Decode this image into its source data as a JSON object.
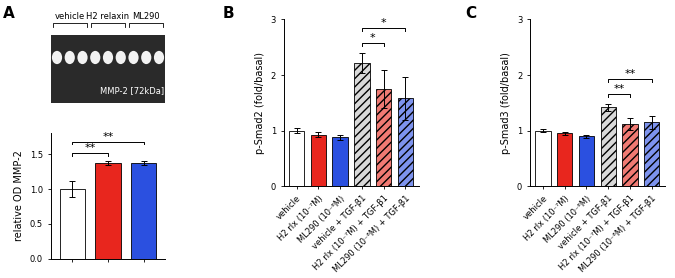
{
  "chart_data": [
    {
      "type": "bar",
      "panel": "A",
      "ylabel": "relative OD MMP-2",
      "blot": {
        "label": "MMP-2 [72kDa]"
      },
      "categories": [
        "vehicle",
        "H2 relaxin",
        "ML290"
      ],
      "values": [
        1.0,
        1.38,
        1.38
      ],
      "errors": [
        0.12,
        0.03,
        0.03
      ],
      "colors": [
        "#ffffff",
        "#e8261e",
        "#2b50e0"
      ],
      "ylim": [
        0,
        1.8
      ],
      "yticks": [
        {
          "value": 0,
          "label": "0.0"
        },
        {
          "value": 0.5,
          "label": "0.5"
        },
        {
          "value": 1.0,
          "label": "1.0"
        },
        {
          "value": 1.5,
          "label": "1.5"
        }
      ],
      "tick_labels": "y",
      "significance": [
        {
          "between": [
            "vehicle",
            "H2 relaxin"
          ],
          "label": "**"
        },
        {
          "between": [
            "vehicle",
            "ML290"
          ],
          "label": "**"
        }
      ]
    },
    {
      "type": "bar",
      "panel": "B",
      "ylabel": "p-Smad2 (fold/basal)",
      "categories": [
        "vehicle",
        "H2 rlx (10⁻⁷M)",
        "ML290 (10⁻⁶M)",
        "vehicle + TGF-β1",
        "H2 rlx (10⁻⁷M) + TGF-β1",
        "ML290 (10⁻⁶M) + TGF-β1"
      ],
      "values": [
        1.0,
        0.93,
        0.88,
        2.22,
        1.75,
        1.58
      ],
      "errors": [
        0.05,
        0.04,
        0.04,
        0.18,
        0.35,
        0.38
      ],
      "colors": [
        "#ffffff",
        "#e8261e",
        "#2b50e0",
        "#d9d9d9",
        "#f07a73",
        "#7d93ee"
      ],
      "ylim": [
        0,
        3
      ],
      "yticks": [
        0,
        1,
        2,
        3
      ],
      "significance": [
        {
          "between": [
            "vehicle + TGF-β1",
            "H2 rlx (10⁻⁷M) + TGF-β1"
          ],
          "label": "*"
        },
        {
          "between": [
            "vehicle + TGF-β1",
            "ML290 (10⁻⁶M) + TGF-β1"
          ],
          "label": "*"
        }
      ]
    },
    {
      "type": "bar",
      "panel": "C",
      "ylabel": "p-Smad3 (fold/basal)",
      "categories": [
        "vehicle",
        "H2 rlx (10⁻⁷M)",
        "ML290 (10⁻⁶M)",
        "vehicle + TGF-β1",
        "H2 rlx (10⁻⁷M) + TGF-β1",
        "ML290 (10⁻⁶M) + TGF-β1"
      ],
      "values": [
        1.0,
        0.95,
        0.9,
        1.42,
        1.12,
        1.15
      ],
      "errors": [
        0.03,
        0.03,
        0.03,
        0.06,
        0.1,
        0.12
      ],
      "colors": [
        "#ffffff",
        "#e8261e",
        "#2b50e0",
        "#d9d9d9",
        "#f07a73",
        "#7d93ee"
      ],
      "ylim": [
        0,
        3
      ],
      "yticks": [
        0,
        1,
        2,
        3
      ],
      "significance": [
        {
          "between": [
            "vehicle + TGF-β1",
            "H2 rlx (10⁻⁷M) + TGF-β1"
          ],
          "label": "**"
        },
        {
          "between": [
            "vehicle + TGF-β1",
            "ML290 (10⁻⁶M) + TGF-β1"
          ],
          "label": "**"
        }
      ]
    }
  ]
}
